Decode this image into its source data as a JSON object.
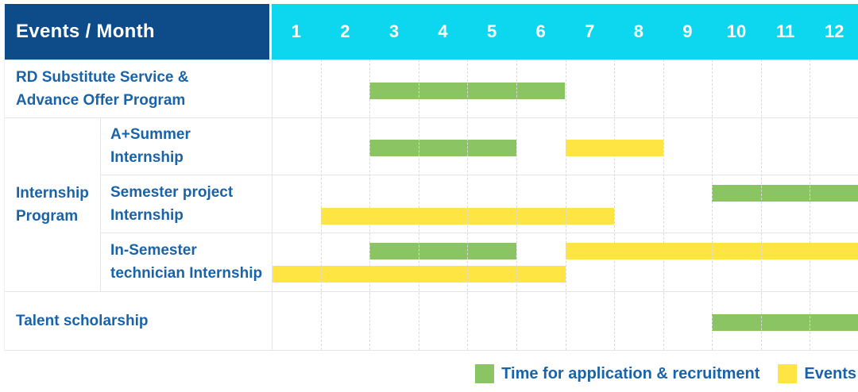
{
  "table": {
    "header_label": "Events / Month",
    "months": [
      "1",
      "2",
      "3",
      "4",
      "5",
      "6",
      "7",
      "8",
      "9",
      "10",
      "11",
      "12"
    ]
  },
  "rows": [
    {
      "label": "RD Substitute Service &\nAdvance Offer Program",
      "group": null,
      "bars": [
        {
          "type": "recruitment",
          "start_month": 3,
          "end_month": 6,
          "lane": "mid"
        }
      ]
    },
    {
      "label": "A+Summer\nInternship",
      "group": "Internship\nProgram",
      "bars": [
        {
          "type": "recruitment",
          "start_month": 3,
          "end_month": 5,
          "lane": "mid"
        },
        {
          "type": "events",
          "start_month": 7,
          "end_month": 8,
          "lane": "mid"
        }
      ]
    },
    {
      "label": "Semester project\nInternship",
      "group": "Internship\nProgram",
      "bars": [
        {
          "type": "recruitment",
          "start_month": 10,
          "end_month": 12,
          "lane": "top"
        },
        {
          "type": "events",
          "start_month": 2,
          "end_month": 7,
          "lane": "bottom"
        }
      ]
    },
    {
      "label": "In-Semester\ntechnician Internship",
      "group": "Internship\nProgram",
      "bars": [
        {
          "type": "recruitment",
          "start_month": 3,
          "end_month": 5,
          "lane": "top"
        },
        {
          "type": "events",
          "start_month": 7,
          "end_month": 12,
          "lane": "top"
        },
        {
          "type": "events",
          "start_month": 1,
          "end_month": 6,
          "lane": "bottom"
        }
      ]
    },
    {
      "label": "Talent scholarship",
      "group": null,
      "bars": [
        {
          "type": "recruitment",
          "start_month": 10,
          "end_month": 12,
          "lane": "mid"
        }
      ]
    }
  ],
  "legend": {
    "recruitment_label": "Time for application & recruitment",
    "events_label": "Events"
  },
  "colors": {
    "header_bg": "#0d4c88",
    "months_bg": "#0cd7ef",
    "recruitment_green": "#8bc462",
    "events_yellow": "#ffe544",
    "label_text": "#1a63a8"
  },
  "chart_data": {
    "type": "bar",
    "subtype": "gantt-schedule",
    "title": "Events / Month",
    "xlabel": "Month",
    "x_ticks": [
      1,
      2,
      3,
      4,
      5,
      6,
      7,
      8,
      9,
      10,
      11,
      12
    ],
    "xlim": [
      1,
      12
    ],
    "grid": true,
    "legend_position": "bottom-right",
    "legend": [
      "Time for application & recruitment",
      "Events"
    ],
    "series": [
      {
        "row": "RD Substitute Service & Advance Offer Program",
        "group": null,
        "bars": [
          {
            "category": "Time for application & recruitment",
            "months": [
              3,
              6
            ]
          }
        ]
      },
      {
        "row": "A+Summer Internship",
        "group": "Internship Program",
        "bars": [
          {
            "category": "Time for application & recruitment",
            "months": [
              3,
              5
            ]
          },
          {
            "category": "Events",
            "months": [
              7,
              8
            ]
          }
        ]
      },
      {
        "row": "Semester project Internship",
        "group": "Internship Program",
        "bars": [
          {
            "category": "Time for application & recruitment",
            "months": [
              10,
              12
            ]
          },
          {
            "category": "Events",
            "months": [
              2,
              7
            ]
          }
        ]
      },
      {
        "row": "In-Semester technician Internship",
        "group": "Internship Program",
        "bars": [
          {
            "category": "Time for application & recruitment",
            "months": [
              3,
              5
            ]
          },
          {
            "category": "Events",
            "months": [
              7,
              12
            ]
          },
          {
            "category": "Events",
            "months": [
              1,
              6
            ]
          }
        ]
      },
      {
        "row": "Talent scholarship",
        "group": null,
        "bars": [
          {
            "category": "Time for application & recruitment",
            "months": [
              10,
              12
            ]
          }
        ]
      }
    ]
  }
}
